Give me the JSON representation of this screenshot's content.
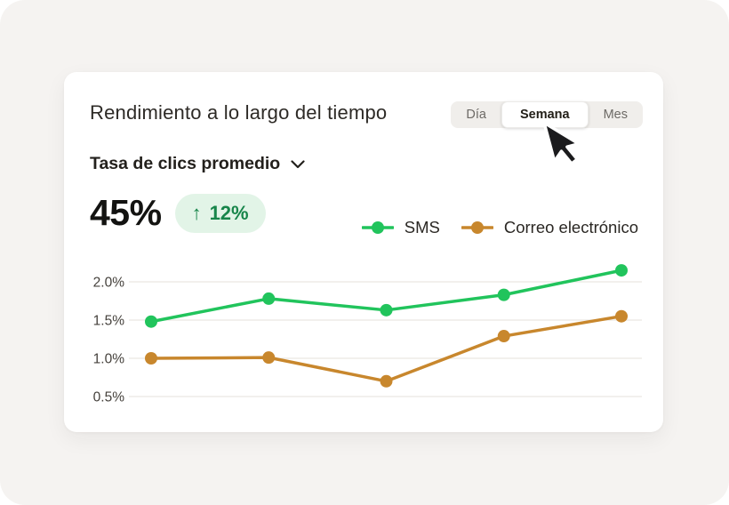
{
  "window": {
    "background": "#f5f3f1"
  },
  "card": {
    "title": "Rendimiento a lo largo del tiempo",
    "tabs": [
      {
        "label": "Día",
        "active": false
      },
      {
        "label": "Semana",
        "active": true
      },
      {
        "label": "Mes",
        "active": false
      }
    ],
    "metric_selector": {
      "label": "Tasa de clics promedio",
      "icon": "chevron-down-icon"
    },
    "stat": {
      "value": "45%",
      "delta": "12%",
      "delta_direction": "up",
      "arrow_glyph": "↑"
    },
    "legend": [
      {
        "label": "SMS",
        "color": "#21c45c"
      },
      {
        "label": "Correo electrónico",
        "color": "#c8872d"
      }
    ]
  },
  "colors": {
    "canvas_bg": "#f5f3f1",
    "card_bg": "#ffffff",
    "sms_green": "#21c45c",
    "email_gold": "#c8872d",
    "badge_bg": "#e2f4e7",
    "badge_text": "#17854a",
    "gridline": "#e9e6e2",
    "tab_group_bg": "#f0eeeb"
  },
  "chart_data": {
    "type": "line",
    "title": "Rendimiento a lo largo del tiempo",
    "ylabel": "Tasa de clics promedio",
    "x": [
      1,
      2,
      3,
      4,
      5
    ],
    "x_labels": [],
    "series": [
      {
        "name": "SMS",
        "color": "#21c45c",
        "values": [
          1.48,
          1.78,
          1.63,
          1.83,
          2.15
        ]
      },
      {
        "name": "Correo electrónico",
        "color": "#c8872d",
        "values": [
          1.0,
          1.01,
          0.7,
          1.29,
          1.55
        ]
      }
    ],
    "yticks": [
      {
        "label": "2.0%",
        "value": 2.0
      },
      {
        "label": "1.5%",
        "value": 1.5
      },
      {
        "label": "1.0%",
        "value": 1.0
      },
      {
        "label": "0.5%",
        "value": 0.5
      }
    ],
    "ylim": [
      0.35,
      2.3
    ],
    "grid": true,
    "legend_position": "top-right"
  }
}
